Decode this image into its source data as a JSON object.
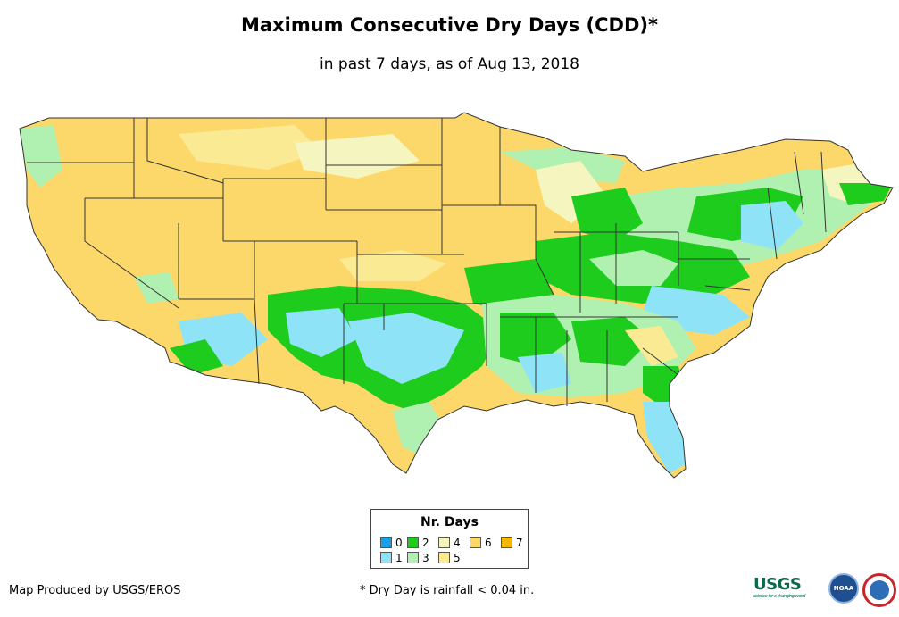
{
  "title": "Maximum Consecutive Dry Days (CDD)*",
  "subtitle": "in past 7 days, as of Aug 13, 2018",
  "legend": {
    "title": "Nr. Days",
    "items": [
      {
        "label": "0",
        "color": "#1a9ee6"
      },
      {
        "label": "1",
        "color": "#8fe3f7"
      },
      {
        "label": "2",
        "color": "#1dcc1d"
      },
      {
        "label": "3",
        "color": "#b0f0b0"
      },
      {
        "label": "4",
        "color": "#f5f5c0"
      },
      {
        "label": "5",
        "color": "#fbea94"
      },
      {
        "label": "6",
        "color": "#fcd86a"
      },
      {
        "label": "7",
        "color": "#f5b800"
      }
    ]
  },
  "footer": {
    "credit": "Map Produced by USGS/EROS",
    "note": "* Dry Day is rainfall < 0.04 in."
  },
  "logos": {
    "usgs": "USGS",
    "usgs_tagline": "science for a changing world",
    "noaa": "NOAA"
  }
}
